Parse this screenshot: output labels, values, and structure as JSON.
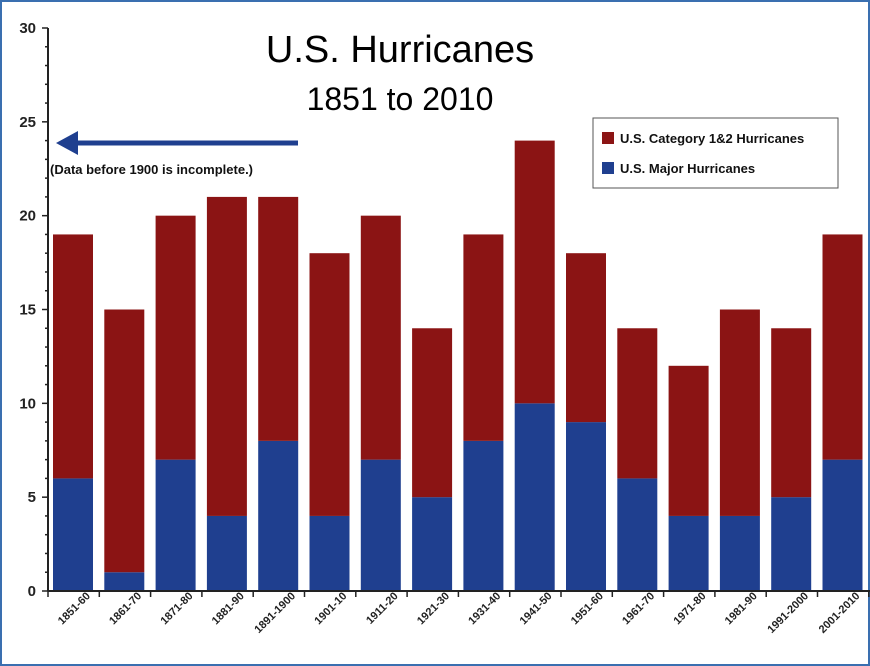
{
  "chart_data": {
    "type": "bar",
    "stacked": true,
    "title": "U.S. Hurricanes",
    "subtitle": "1851 to 2010",
    "categories": [
      "1851-60",
      "1861-70",
      "1871-80",
      "1881-90",
      "1891-1900",
      "1901-10",
      "1911-20",
      "1921-30",
      "1931-40",
      "1941-50",
      "1951-60",
      "1961-70",
      "1971-80",
      "1981-90",
      "1991-2000",
      "2001-2010"
    ],
    "series": [
      {
        "name": "U.S. Major Hurricanes",
        "color": "#1f3f8f",
        "values": [
          6,
          1,
          7,
          4,
          8,
          4,
          7,
          5,
          8,
          10,
          9,
          6,
          4,
          4,
          5,
          7
        ]
      },
      {
        "name": "U.S. Category 1&2 Hurricanes",
        "color": "#8b1414",
        "values": [
          13,
          14,
          13,
          17,
          13,
          14,
          13,
          9,
          11,
          14,
          9,
          8,
          8,
          11,
          9,
          12
        ]
      }
    ],
    "ylim": [
      0,
      30
    ],
    "yticks": [
      0,
      5,
      10,
      15,
      20,
      25,
      30
    ],
    "legend_order": [
      "U.S. Category 1&2 Hurricanes",
      "U.S. Major Hurricanes"
    ],
    "legend_position": "top-right",
    "annotation": {
      "text": "(Data before 1900 is incomplete.)",
      "arrow": "left"
    },
    "grid": false
  }
}
